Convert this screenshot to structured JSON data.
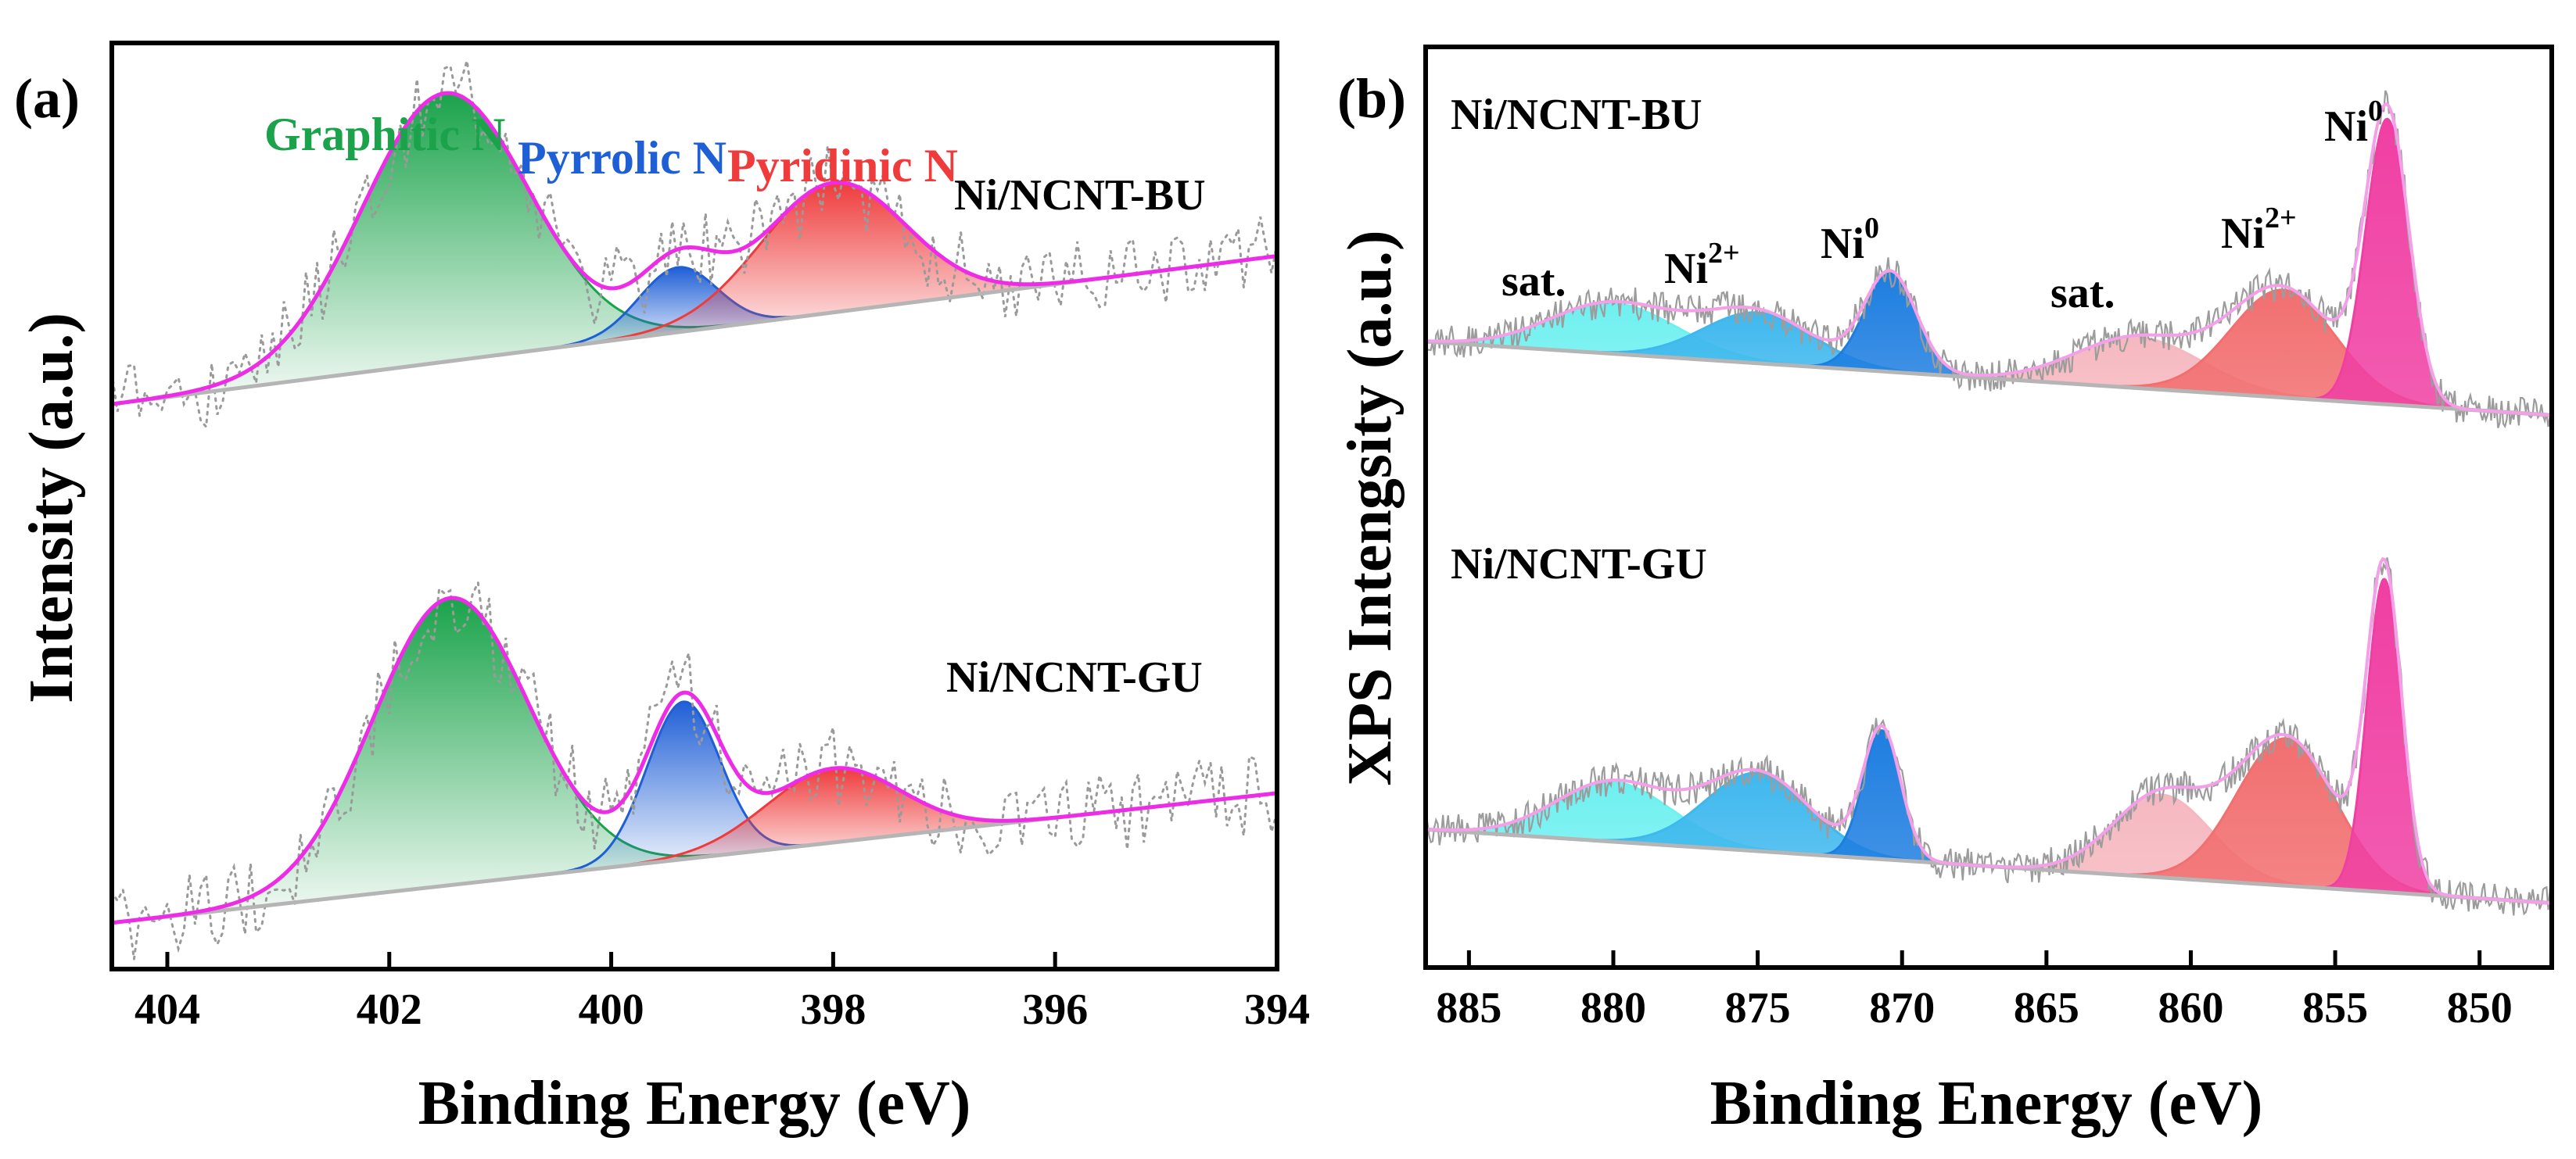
{
  "chart_data": [
    {
      "panel": "(a)",
      "type": "line",
      "xlabel": "Binding Energy (eV)",
      "ylabel": "Intensity (a.u.)",
      "xlim": [
        404.5,
        394
      ],
      "ylim": [
        0,
        1
      ],
      "xticks": [
        "404",
        "402",
        "400",
        "398",
        "396",
        "394"
      ],
      "xtick_values": [
        404,
        402,
        400,
        398,
        396,
        394
      ],
      "component_labels": [
        {
          "text": "Graphitic N",
          "color": "#1aa34a"
        },
        {
          "text": "Pyrrolic N",
          "color": "#1f5fd6"
        },
        {
          "text": "Pyridinic N",
          "color": "#ef3b3b"
        }
      ],
      "series": [
        {
          "name": "Ni/NCNT-BU",
          "baseline": [
            [
              404.5,
              0.61
            ],
            [
              394,
              0.77
            ]
          ],
          "components": [
            {
              "name": "Graphitic N",
              "center": 401.5,
              "height": 0.29,
              "width": 0.75,
              "color": "#1aa34a"
            },
            {
              "name": "Pyrrolic N",
              "center": 399.4,
              "height": 0.07,
              "width": 0.35,
              "color": "#1f5fd6"
            },
            {
              "name": "Pyridinic N",
              "center": 398.0,
              "height": 0.14,
              "width": 0.65,
              "color": "#ef3b3b"
            }
          ]
        },
        {
          "name": "Ni/NCNT-GU",
          "baseline": [
            [
              404.5,
              0.05
            ],
            [
              394,
              0.19
            ]
          ],
          "components": [
            {
              "name": "Graphitic N",
              "center": 401.45,
              "height": 0.31,
              "width": 0.7,
              "color": "#1aa34a"
            },
            {
              "name": "Pyrrolic N",
              "center": 399.35,
              "height": 0.17,
              "width": 0.33,
              "color": "#1f5fd6"
            },
            {
              "name": "Pyridinic N",
              "center": 398.0,
              "height": 0.08,
              "width": 0.6,
              "color": "#ef3b3b"
            }
          ]
        }
      ]
    },
    {
      "panel": "(b)",
      "type": "line",
      "xlabel": "Binding Energy (eV)",
      "ylabel": "XPS Intengsity (a.u.)",
      "xlim": [
        886.5,
        847.5
      ],
      "ylim": [
        0,
        1
      ],
      "xticks": [
        "885",
        "880",
        "875",
        "870",
        "865",
        "860",
        "855",
        "850"
      ],
      "xtick_values": [
        885,
        880,
        875,
        870,
        865,
        860,
        855,
        850
      ],
      "series": [
        {
          "name": "Ni/NCNT-BU",
          "baseline": [
            [
              886.5,
              0.68
            ],
            [
              847.5,
              0.6
            ]
          ],
          "components": [
            {
              "name": "sat.",
              "center": 880.0,
              "height": 0.055,
              "width": 2.2,
              "color": "#6ff0f0"
            },
            {
              "name": "Ni2+",
              "center": 875.0,
              "height": 0.055,
              "width": 1.9,
              "color": "#3fb8ee"
            },
            {
              "name": "Ni0",
              "center": 870.4,
              "height": 0.107,
              "width": 0.9,
              "color": "#1e7ee0"
            },
            {
              "name": "sat.",
              "center": 861.8,
              "height": 0.055,
              "width": 2.2,
              "color": "#f6b8c0"
            },
            {
              "name": "Ni2+",
              "center": 856.8,
              "height": 0.117,
              "width": 1.8,
              "color": "#f26f70"
            },
            {
              "name": "Ni0",
              "center": 853.2,
              "height": 0.31,
              "width": 0.75,
              "color": "#f03fa3"
            }
          ]
        },
        {
          "name": "Ni/NCNT-GU",
          "baseline": [
            [
              886.5,
              0.15
            ],
            [
              847.5,
              0.07
            ]
          ],
          "components": [
            {
              "name": "sat.",
              "center": 880.0,
              "height": 0.065,
              "width": 2.0,
              "color": "#6ff0f0"
            },
            {
              "name": "Ni2+",
              "center": 875.0,
              "height": 0.085,
              "width": 1.8,
              "color": "#3fb8ee"
            },
            {
              "name": "Ni0",
              "center": 870.7,
              "height": 0.14,
              "width": 0.65,
              "color": "#1e7ee0"
            },
            {
              "name": "sat.",
              "center": 861.0,
              "height": 0.09,
              "width": 1.7,
              "color": "#f6b8c0"
            },
            {
              "name": "Ni2+",
              "center": 856.7,
              "height": 0.16,
              "width": 1.7,
              "color": "#f26f70"
            },
            {
              "name": "Ni0",
              "center": 853.3,
              "height": 0.34,
              "width": 0.6,
              "color": "#f03fa3"
            }
          ]
        }
      ],
      "peak_labels": [
        {
          "base": "sat.",
          "sup": ""
        },
        {
          "base": "Ni",
          "sup": "2+"
        },
        {
          "base": "Ni",
          "sup": "0"
        },
        {
          "base": "sat.",
          "sup": ""
        },
        {
          "base": "Ni",
          "sup": "2+"
        },
        {
          "base": "Ni",
          "sup": "0"
        }
      ]
    }
  ]
}
